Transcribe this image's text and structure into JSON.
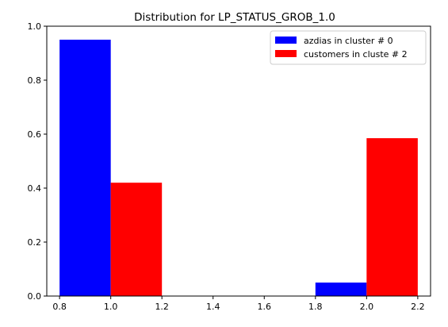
{
  "chart_data": {
    "type": "bar",
    "title": "Distribution for LP_STATUS_GROB_1.0",
    "xlabel": "",
    "ylabel": "",
    "xlim": [
      0.75,
      2.25
    ],
    "ylim": [
      0,
      1.0
    ],
    "xticks": [
      0.8,
      1.0,
      1.2,
      1.4,
      1.6,
      1.8,
      2.0,
      2.2
    ],
    "xtick_labels": [
      "0.8",
      "1.0",
      "1.2",
      "1.4",
      "1.6",
      "1.8",
      "2.0",
      "2.2"
    ],
    "yticks": [
      0.0,
      0.2,
      0.4,
      0.6,
      0.8,
      1.0
    ],
    "ytick_labels": [
      "0.0",
      "0.2",
      "0.4",
      "0.6",
      "0.8",
      "1.0"
    ],
    "bar_width": 0.2,
    "grid": false,
    "legend_position": "top-right",
    "series": [
      {
        "name": "azdias in cluster # 0",
        "color": "#0000ff",
        "x": [
          0.9,
          1.9
        ],
        "values": [
          0.95,
          0.05
        ]
      },
      {
        "name": "customers in cluste # 2",
        "color": "#ff0000",
        "x": [
          1.1,
          2.1
        ],
        "values": [
          0.42,
          0.585
        ]
      }
    ]
  }
}
